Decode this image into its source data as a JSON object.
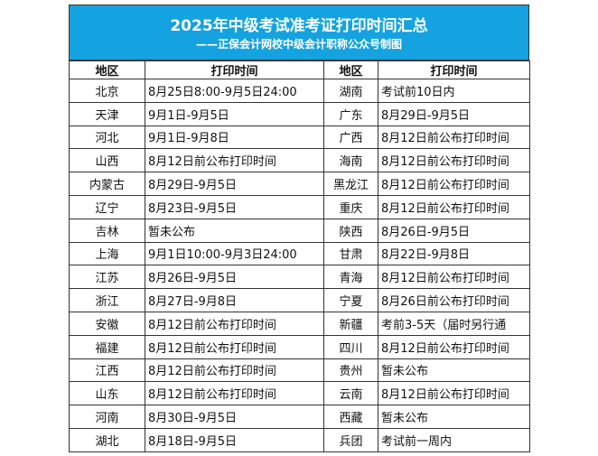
{
  "header": {
    "title": "2025年中级考试准考证打印时间汇总",
    "subtitle": "——正保会计网校中级会计职称公众号制图"
  },
  "table": {
    "columns": [
      "地区",
      "打印时间",
      "地区",
      "打印时间"
    ],
    "rows": [
      [
        "北京",
        "8月25日8:00-9月5日24:00",
        "湖南",
        "考试前10日内"
      ],
      [
        "天津",
        "9月1日-9月5日",
        "广东",
        "8月29日-9月5日"
      ],
      [
        "河北",
        "9月1日-9月8日",
        "广西",
        "8月12日前公布打印时间"
      ],
      [
        "山西",
        "8月12日前公布打印时间",
        "海南",
        "8月12日前公布打印时间"
      ],
      [
        "内蒙古",
        "8月29日-9月5日",
        "黑龙江",
        "8月12日前公布打印时间"
      ],
      [
        "辽宁",
        "8月23日-9月5日",
        "重庆",
        "8月12日前公布打印时间"
      ],
      [
        "吉林",
        "暂未公布",
        "陕西",
        "8月26日-9月5日"
      ],
      [
        "上海",
        "9月1日10:00-9月3日24:00",
        "甘肃",
        "8月22日-9月8日"
      ],
      [
        "江苏",
        "8月26日-9月5日",
        "青海",
        "8月12日前公布打印时间"
      ],
      [
        "浙江",
        "8月27日-9月8日",
        "宁夏",
        "8月26日前公布打印时间"
      ],
      [
        "安徽",
        "8月12日前公布打印时间",
        "新疆",
        "考前3-5天（届时另行通"
      ],
      [
        "福建",
        "8月12日前公布打印时间",
        "四川",
        "8月12日前公布打印时间"
      ],
      [
        "江西",
        "8月12日前公布打印时间",
        "贵州",
        "暂未公布"
      ],
      [
        "山东",
        "8月12日前公布打印时间",
        "云南",
        "8月12日前公布打印时间"
      ],
      [
        "河南",
        "8月30日-9月5日",
        "西藏",
        "暂未公布"
      ],
      [
        "湖北",
        "8月18日-9月5日",
        "兵团",
        "考试前一周内"
      ]
    ]
  }
}
